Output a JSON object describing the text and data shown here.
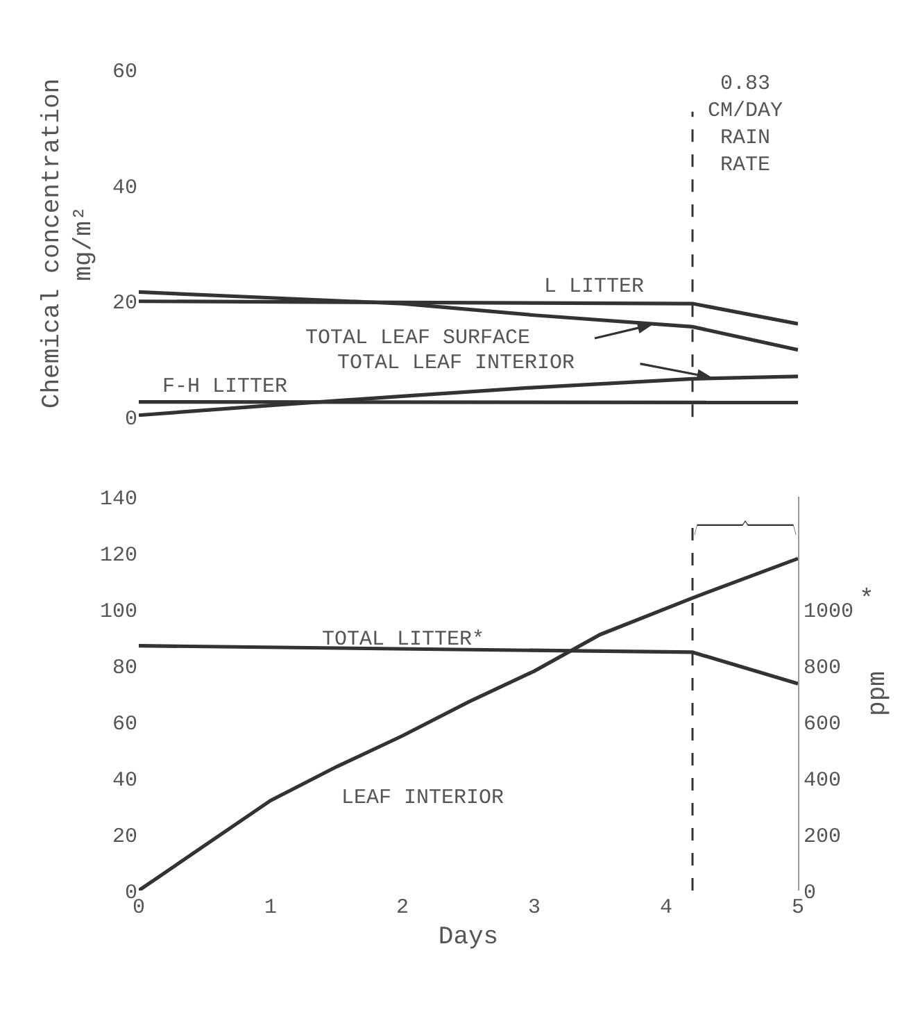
{
  "chart_data": [
    {
      "type": "line",
      "ylabel": "Chemical concentration\nmg/m²",
      "xlim": [
        0,
        5
      ],
      "ylim": [
        0,
        60
      ],
      "yticks": [
        0,
        20,
        40,
        60
      ],
      "tick_labels": "y",
      "legend": false,
      "marker": "none",
      "line_style": "solid",
      "series": [
        {
          "name": "L LITTER",
          "color": "#333333",
          "x": [
            0,
            4.2,
            5
          ],
          "values": [
            20,
            19.6,
            16.1
          ]
        },
        {
          "name": "TOTAL LEAF SURFACE",
          "color": "#333333",
          "x": [
            0,
            1,
            2,
            3,
            4.2,
            5
          ],
          "values": [
            21.6,
            20.6,
            19.6,
            17.6,
            15.6,
            11.6
          ]
        },
        {
          "name": "TOTAL LEAF INTERIOR",
          "color": "#333333",
          "x": [
            0,
            1,
            2,
            3,
            4.2,
            5
          ],
          "values": [
            0.3,
            2.0,
            3.6,
            5.1,
            6.6,
            7.0
          ]
        },
        {
          "name": "F-H LITTER",
          "color": "#333333",
          "x": [
            0,
            5
          ],
          "values": [
            2.6,
            2.5
          ]
        }
      ],
      "ref_lines": [
        {
          "axis": "x",
          "value": 4.2,
          "label": "0.83\nCM/DAY\nRAIN\nRATE",
          "line_style": "dashed",
          "color": "#333333"
        }
      ]
    },
    {
      "type": "line",
      "xlabel": "Days",
      "y2label": "ppm",
      "xlim": [
        0,
        5
      ],
      "xticks": [
        0,
        1,
        2,
        3,
        4,
        5
      ],
      "ylim": [
        0,
        140
      ],
      "yticks": [
        0,
        20,
        40,
        60,
        80,
        100,
        120,
        140
      ],
      "y2lim": [
        0,
        1400
      ],
      "y2ticks": [
        0,
        200,
        400,
        600,
        800,
        1000
      ],
      "legend": false,
      "marker": "none",
      "line_style": "solid",
      "series": [
        {
          "name": "TOTAL LITTER*",
          "color": "#333333",
          "axis": "y2",
          "x": [
            0,
            4.2,
            5
          ],
          "values": [
            870,
            847,
            735
          ]
        },
        {
          "name": "LEAF INTERIOR",
          "color": "#333333",
          "x": [
            0,
            0.5,
            1,
            1.5,
            2,
            2.5,
            3,
            3.5,
            4.2,
            5
          ],
          "values": [
            0,
            16,
            32,
            44,
            55,
            67,
            78,
            91,
            104,
            118
          ]
        }
      ],
      "ref_lines": [
        {
          "axis": "x",
          "value": 4.2,
          "line_style": "dashed",
          "color": "#333333"
        }
      ],
      "annotations": [
        "*"
      ]
    }
  ]
}
